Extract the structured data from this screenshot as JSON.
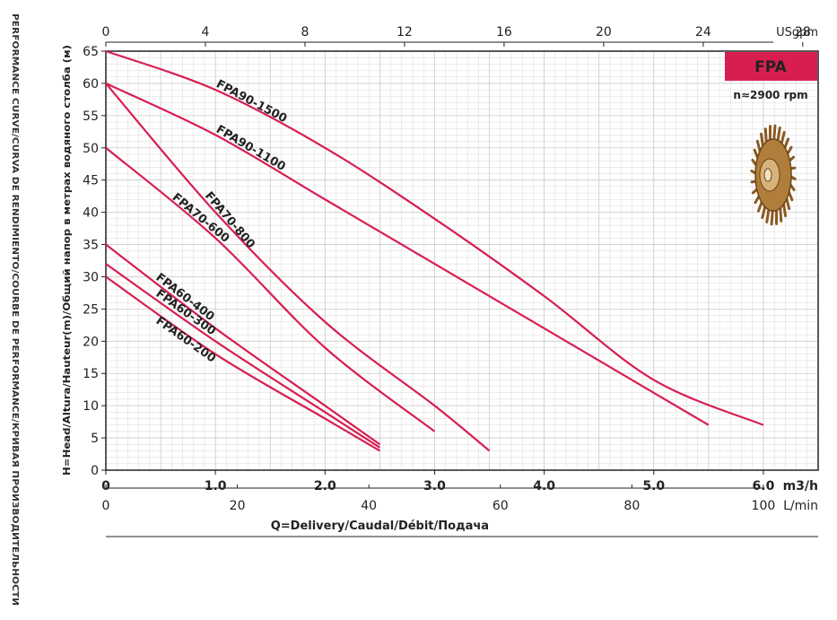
{
  "chart_data": {
    "type": "line",
    "badge": "FPA",
    "speed": "n≈2900 rpm",
    "ylabel": "H=Head/Altura/Hauteur(m)/Общий напор в метрах водяного столба (м)",
    "xlabel": "Q=Delivery/Caudal/Débit/Подача",
    "side_title": "PERFORMANCE CURVE/CURVA DE RENDIMIENTO/COURBE DE PERFORMANCE/КРИВАЯ ПРОИЗВОДИТЕЛЬНОСТИ",
    "ylim": [
      0,
      65
    ],
    "xlim_m3h": [
      0,
      6.5
    ],
    "y_ticks": [
      "0",
      "5",
      "10",
      "15",
      "20",
      "25",
      "30",
      "35",
      "40",
      "45",
      "50",
      "55",
      "60",
      "65"
    ],
    "x_m3h_ticks": [
      "0",
      "1.0",
      "2.0",
      "3.0",
      "4.0",
      "5.0",
      "6.0"
    ],
    "x_m3h_unit": "m3/h",
    "x_lmin_ticks": [
      "0",
      "20",
      "40",
      "60",
      "80",
      "100"
    ],
    "x_lmin_unit": "L/min",
    "x_usgpm_ticks": [
      "0",
      "4",
      "8",
      "12",
      "16",
      "20",
      "24",
      "28"
    ],
    "x_usgpm_unit": "USgpm",
    "grid": true,
    "series": [
      {
        "name": "FPA90-1500",
        "x": [
          0,
          1.0,
          2.0,
          3.0,
          4.0,
          5.0,
          6.0
        ],
        "y": [
          65,
          59,
          50,
          39,
          27,
          14,
          7
        ]
      },
      {
        "name": "FPA90-1100",
        "x": [
          0,
          1.0,
          2.0,
          3.0,
          4.0,
          5.0,
          5.5
        ],
        "y": [
          60,
          52,
          42,
          32,
          22,
          12,
          7
        ]
      },
      {
        "name": "FPA70-800",
        "x": [
          0,
          1.0,
          2.0,
          3.0,
          3.5
        ],
        "y": [
          60,
          40,
          23,
          10,
          3
        ]
      },
      {
        "name": "FPA70-600",
        "x": [
          0,
          1.0,
          2.0,
          3.0
        ],
        "y": [
          50,
          36,
          19,
          6
        ]
      },
      {
        "name": "FPA60-400",
        "x": [
          0,
          1.0,
          2.0,
          2.5
        ],
        "y": [
          35,
          22,
          10,
          4
        ]
      },
      {
        "name": "FPA60-300",
        "x": [
          0,
          1.0,
          2.0,
          2.5
        ],
        "y": [
          32,
          20,
          9,
          3.5
        ]
      },
      {
        "name": "FPA60-200",
        "x": [
          0,
          1.0,
          2.0,
          2.5
        ],
        "y": [
          30,
          18,
          8,
          3
        ]
      }
    ],
    "colors": {
      "curve": "#d81e4f",
      "badge": "#d81e4f",
      "grid": "#d9d9d9",
      "axis": "#222222",
      "impeller": "#b07d3b"
    }
  }
}
